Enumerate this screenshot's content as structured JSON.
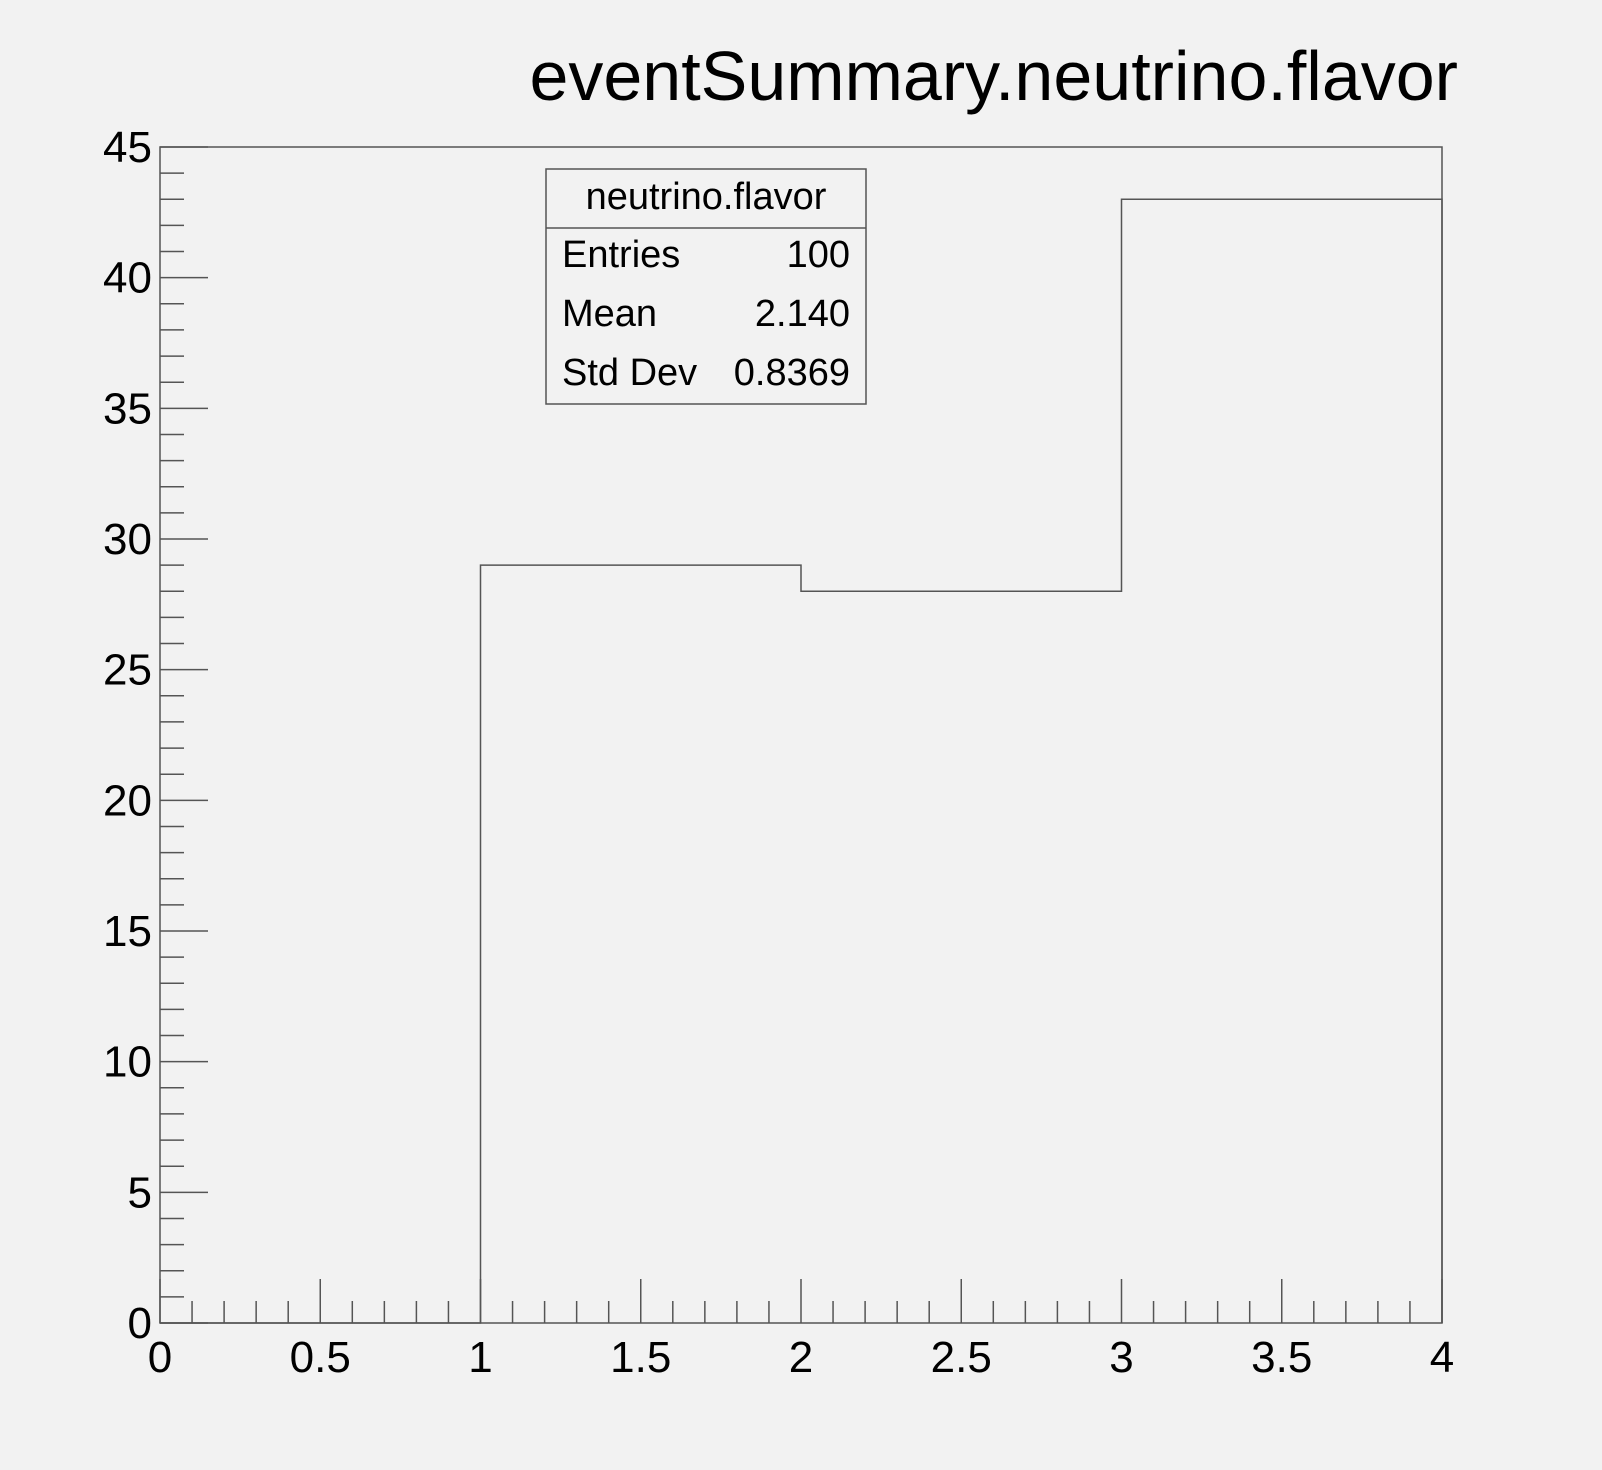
{
  "chart_data": {
    "type": "bar",
    "title": "eventSummary.neutrino.flavor",
    "xlabel": "",
    "ylabel": "",
    "bin_edges": [
      0,
      1,
      2,
      3,
      4
    ],
    "values": [
      0,
      29,
      28,
      43
    ],
    "xlim": [
      0,
      4
    ],
    "ylim": [
      0,
      45
    ],
    "x_ticks": [
      "0",
      "0.5",
      "1",
      "1.5",
      "2",
      "2.5",
      "3",
      "3.5",
      "4"
    ],
    "y_ticks": [
      "0",
      "5",
      "10",
      "15",
      "20",
      "25",
      "30",
      "35",
      "40",
      "45"
    ],
    "grid": false,
    "legend": "none",
    "stats_box": {
      "title": "neutrino.flavor",
      "rows": [
        {
          "label": "Entries",
          "value": "100"
        },
        {
          "label": "Mean",
          "value": "2.140"
        },
        {
          "label": "Std Dev",
          "value": "0.8369"
        }
      ]
    }
  },
  "colors": {
    "background": "#f2f2f2",
    "line": "#555555",
    "text": "#000000"
  }
}
